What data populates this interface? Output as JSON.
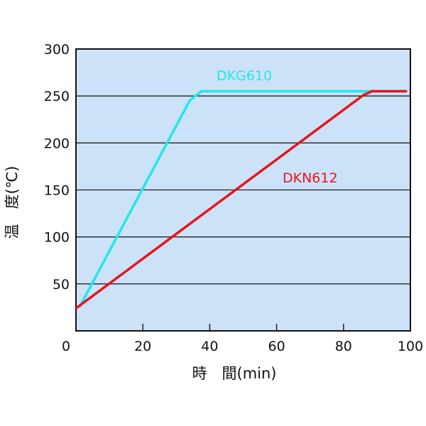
{
  "chart_data": {
    "type": "line",
    "title": "",
    "xlabel": "時　間(min)",
    "ylabel": "温　度(℃)",
    "xlim": [
      0,
      100
    ],
    "ylim": [
      0,
      300
    ],
    "xticks": [
      0,
      20,
      40,
      60,
      80,
      100
    ],
    "yticks": [
      50,
      100,
      150,
      200,
      250,
      300
    ],
    "grid": "horizontal",
    "background_color": "#cce2f8",
    "series": [
      {
        "name": "DKG610",
        "color": "#22e6ee",
        "points": [
          [
            1,
            25
          ],
          [
            34,
            245
          ],
          [
            37.5,
            255
          ],
          [
            89,
            255
          ]
        ]
      },
      {
        "name": "DKN612",
        "color": "#e8141c",
        "points": [
          [
            0,
            24
          ],
          [
            86,
            251
          ],
          [
            88.5,
            255
          ],
          [
            99,
            255
          ]
        ]
      }
    ]
  }
}
